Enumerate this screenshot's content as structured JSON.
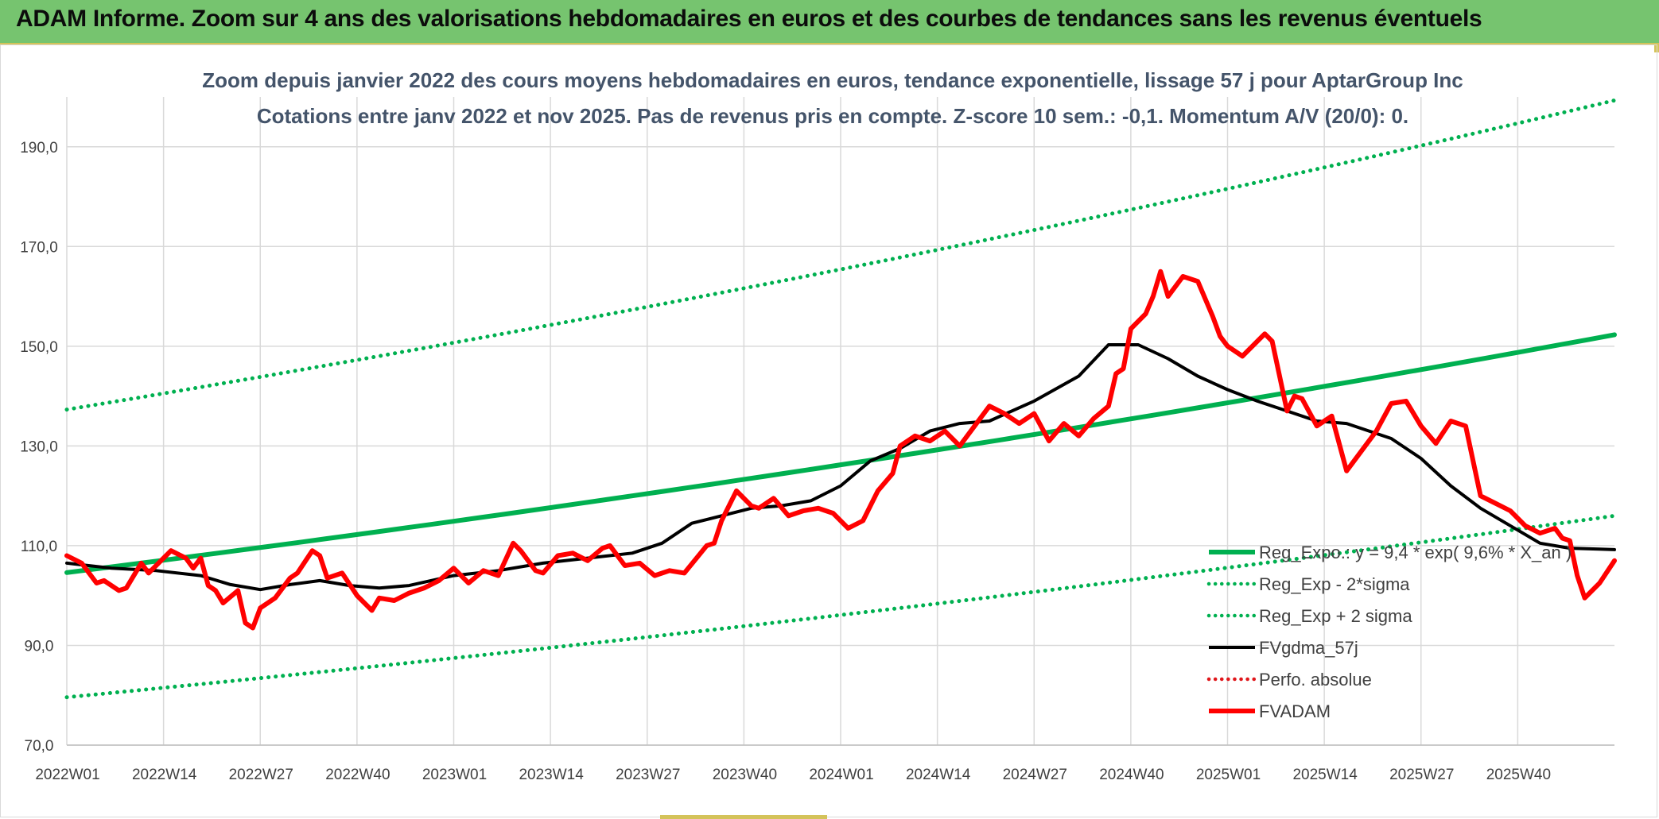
{
  "header": {
    "title": "ADAM Informe. Zoom sur 4 ans des valorisations hebdomadaires en euros et des courbes de tendances sans les revenus éventuels"
  },
  "chart_data": {
    "type": "line",
    "title": "Zoom depuis janvier 2022 des cours moyens hebdomadaires en euros, tendance exponentielle, lissage 57 j pour AptarGroup Inc",
    "subtitle": "Cotations entre janv 2022 et nov 2025. Pas de revenus pris en compte. Z-score 10 sem.: -0,1. Momentum A/V (20/0): 0.",
    "xlabel": "",
    "ylabel": "",
    "ylim": [
      70,
      200
    ],
    "y_ticks": [
      70,
      90,
      110,
      130,
      150,
      170,
      190
    ],
    "y_tick_labels": [
      "70,0",
      "90,0",
      "110,0",
      "130,0",
      "150,0",
      "170,0",
      "190,0"
    ],
    "x_tick_labels": [
      "2022W01",
      "2022W14",
      "2022W27",
      "2022W40",
      "2023W01",
      "2023W14",
      "2023W27",
      "2023W40",
      "2024W01",
      "2024W14",
      "2024W27",
      "2024W40",
      "2025W01",
      "2025W14",
      "2025W27",
      "2025W40"
    ],
    "x_tick_weeks": [
      0,
      13,
      26,
      39,
      52,
      65,
      78,
      91,
      104,
      117,
      130,
      143,
      156,
      169,
      182,
      195
    ],
    "x_range_weeks": [
      0,
      208
    ],
    "grid": true,
    "legend_position": "right",
    "legend_overlay_text": "Reg_Expo.: y = 9,4 * exp( 9,6% *  X_an )",
    "series": [
      {
        "name": "Reg_Expo.: y = 9,4 * exp( 9,6% *  X_an )",
        "style": "solid",
        "color": "#00b050",
        "width": 6,
        "x": [
          0,
          208
        ],
        "y": [
          104.6,
          152.3
        ]
      },
      {
        "name": "Reg_Exp - 2*sigma",
        "style": "dotted",
        "color": "#00b050",
        "width": 5,
        "x": [
          0,
          208
        ],
        "y": [
          79.6,
          116.0
        ]
      },
      {
        "name": "Reg_Exp + 2 sigma",
        "style": "dotted",
        "color": "#00b050",
        "width": 5,
        "x": [
          0,
          208
        ],
        "y": [
          137.3,
          199.3
        ]
      },
      {
        "name": "FVgdma_57j",
        "style": "solid",
        "color": "#000000",
        "width": 4,
        "x": [
          0,
          6,
          12,
          18,
          22,
          26,
          30,
          34,
          38,
          42,
          46,
          52,
          58,
          64,
          70,
          76,
          80,
          84,
          88,
          92,
          96,
          100,
          104,
          108,
          112,
          116,
          120,
          124,
          130,
          136,
          140,
          144,
          148,
          152,
          156,
          160,
          164,
          168,
          172,
          178,
          182,
          186,
          190,
          194,
          198,
          202,
          206,
          208
        ],
        "y": [
          106.5,
          105.5,
          105,
          104,
          102.2,
          101.2,
          102.2,
          103,
          102,
          101.5,
          102,
          104,
          105,
          106.5,
          107.5,
          108.5,
          110.5,
          114.5,
          116,
          117.5,
          118,
          119,
          122,
          127,
          129.5,
          133,
          134.5,
          135,
          139,
          144,
          150.3,
          150.3,
          147.5,
          144,
          141.3,
          139,
          137,
          135,
          134.5,
          131.5,
          127.5,
          122,
          117.5,
          114,
          110.5,
          109.5,
          109.3,
          109.2
        ]
      },
      {
        "name": "Perfo. absolue",
        "style": "dotted",
        "color": "#e0161a",
        "width": 4,
        "x": [],
        "y": []
      },
      {
        "name": "FVADAM",
        "style": "solid",
        "color": "#ff0000",
        "width": 6,
        "x": [
          0,
          2,
          4,
          5,
          7,
          8,
          10,
          11,
          13,
          14,
          16,
          17,
          18,
          19,
          20,
          21,
          23,
          24,
          25,
          26,
          28,
          30,
          31,
          33,
          34,
          35,
          37,
          39,
          41,
          42,
          44,
          46,
          48,
          50,
          52,
          54,
          56,
          58,
          60,
          61,
          63,
          64,
          66,
          68,
          70,
          72,
          73,
          75,
          77,
          79,
          81,
          83,
          86,
          87,
          88,
          90,
          92,
          93,
          95,
          97,
          99,
          101,
          103,
          105,
          107,
          109,
          111,
          112,
          114,
          116,
          118,
          120,
          122,
          124,
          126,
          128,
          130,
          132,
          134,
          136,
          138,
          140,
          141,
          142,
          143,
          145,
          146,
          147,
          148,
          150,
          152,
          154,
          155,
          156,
          158,
          160,
          161,
          162,
          164,
          165,
          166,
          168,
          170,
          172,
          174,
          176,
          178,
          180,
          182,
          184,
          186,
          188,
          190,
          192,
          194,
          196,
          198,
          200,
          201,
          202,
          203,
          204,
          206,
          208
        ],
        "y": [
          108,
          106.5,
          102.5,
          103,
          101,
          101.5,
          106.5,
          104.5,
          107.5,
          109,
          107.5,
          105.5,
          107.5,
          102,
          101,
          98.5,
          101,
          94.5,
          93.5,
          97.5,
          99.5,
          103.5,
          104.5,
          109,
          108,
          103.5,
          104.5,
          100,
          97,
          99.5,
          99,
          100.5,
          101.5,
          103,
          105.5,
          102.5,
          105,
          104,
          110.5,
          109,
          105,
          104.5,
          108,
          108.5,
          107,
          109.5,
          110,
          106,
          106.5,
          104,
          105,
          104.5,
          110,
          110.5,
          115,
          121,
          118,
          117.5,
          119.5,
          116,
          117,
          117.5,
          116.5,
          113.5,
          115,
          121,
          124.5,
          130,
          132,
          131,
          133,
          130,
          134,
          138,
          136.5,
          134.5,
          136.5,
          131,
          134.5,
          132,
          135.5,
          138,
          144.5,
          145.5,
          153.5,
          156.5,
          160,
          165,
          160,
          164,
          163,
          156,
          152,
          150,
          148,
          151,
          152.5,
          151,
          137,
          140,
          139.5,
          134,
          136,
          125,
          129,
          133,
          138.5,
          139,
          134,
          130.5,
          135,
          134,
          120,
          118.5,
          117,
          114,
          112.5,
          113.5,
          111.5,
          111,
          104,
          99.5,
          102.5,
          107
        ]
      }
    ]
  }
}
